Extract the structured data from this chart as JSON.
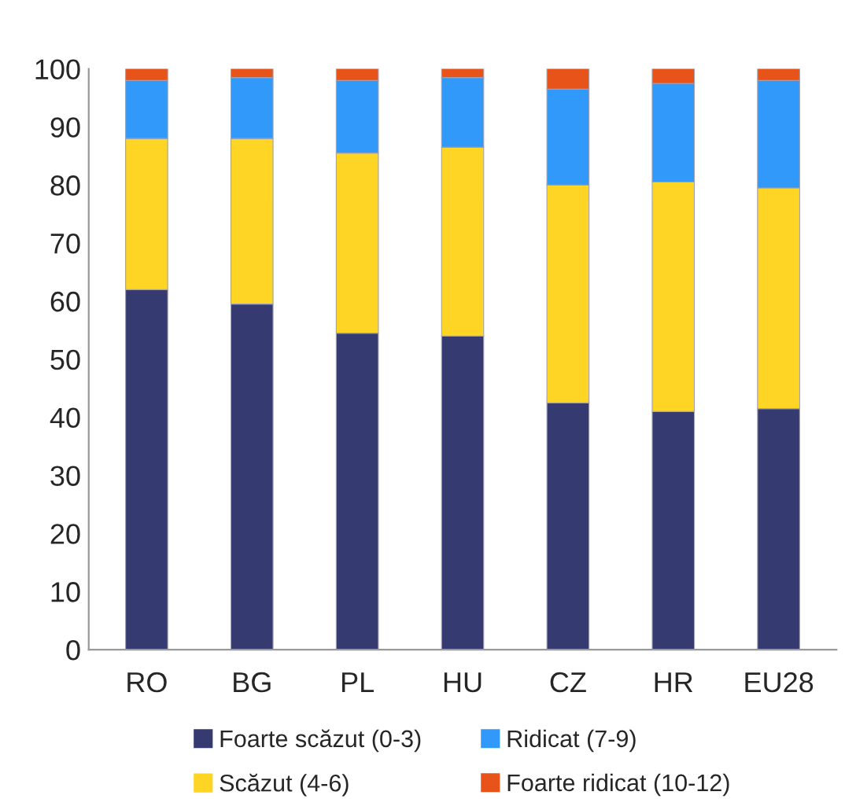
{
  "chart_data": {
    "type": "bar",
    "stacked": true,
    "categories": [
      "RO",
      "BG",
      "PL",
      "HU",
      "CZ",
      "HR",
      "EU28"
    ],
    "series": [
      {
        "name": "Foarte scăzut (0-3)",
        "color": "#353a70",
        "values": [
          62,
          59.5,
          54.5,
          54,
          42.5,
          41,
          41.5
        ]
      },
      {
        "name": "Scăzut (4-6)",
        "color": "#fed525",
        "values": [
          26,
          28.5,
          31,
          32.5,
          37.5,
          39.5,
          38
        ]
      },
      {
        "name": "Ridicat (7-9)",
        "color": "#3199fa",
        "values": [
          10,
          10.5,
          12.5,
          12,
          16.5,
          17,
          18.5
        ]
      },
      {
        "name": "Foarte ridicat (10-12)",
        "color": "#e8531a",
        "values": [
          2,
          1.5,
          2,
          1.5,
          3.5,
          2.5,
          2
        ]
      }
    ],
    "ylim": [
      0,
      100
    ],
    "yticks": [
      0,
      10,
      20,
      30,
      40,
      50,
      60,
      70,
      80,
      90,
      100
    ],
    "grid": false,
    "legend": "bottom"
  }
}
